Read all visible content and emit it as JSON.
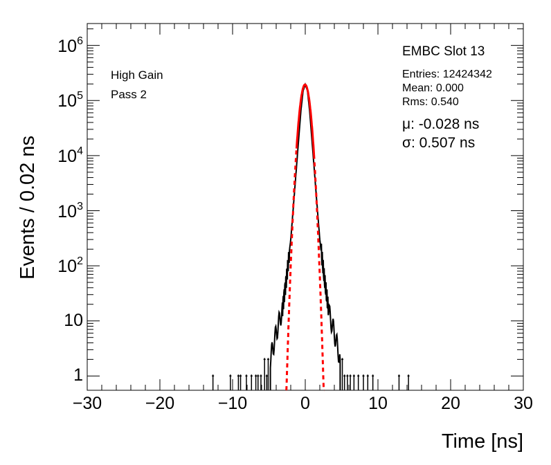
{
  "chart_data": {
    "type": "histogram",
    "title": "",
    "xlabel": "Time [ns]",
    "ylabel": "Events / 0.02 ns",
    "xlim": [
      -30,
      30
    ],
    "ylim": [
      0.55,
      2500000
    ],
    "y_scale": "log",
    "x_ticks": [
      -30,
      -20,
      -10,
      0,
      10,
      20,
      30
    ],
    "x_tick_labels": [
      "−30",
      "−20",
      "−10",
      "0",
      "10",
      "20",
      "30"
    ],
    "y_ticks": [
      1,
      10,
      100,
      1000,
      10000,
      100000,
      1000000
    ],
    "y_tick_labels": [
      {
        "base": "1",
        "exp": ""
      },
      {
        "base": "10",
        "exp": ""
      },
      {
        "base": "10",
        "exp": "2"
      },
      {
        "base": "10",
        "exp": "3"
      },
      {
        "base": "10",
        "exp": "4"
      },
      {
        "base": "10",
        "exp": "5"
      },
      {
        "base": "10",
        "exp": "6"
      }
    ],
    "legend_text": {
      "gain": "High Gain",
      "pass": "Pass 2",
      "slot": "EMBC Slot 13",
      "entries": "Entries: 12424342",
      "mean": "Mean: 0.000",
      "rms": "Rms: 0.540",
      "mu": "μ: -0.028 ns",
      "sigma": "σ: 0.507 ns"
    },
    "series": [
      {
        "kind": "histogram",
        "color": "#000000",
        "core_points": [
          [
            -4.8,
            2
          ],
          [
            -4.0,
            6
          ],
          [
            -3.2,
            15
          ],
          [
            -2.6,
            60
          ],
          [
            -2.0,
            300
          ],
          [
            -1.5,
            2000
          ],
          [
            -1.0,
            14000
          ],
          [
            -0.6,
            65000
          ],
          [
            -0.3,
            150000
          ],
          [
            0.0,
            195000
          ],
          [
            0.3,
            150000
          ],
          [
            0.6,
            65000
          ],
          [
            1.0,
            14000
          ],
          [
            1.5,
            2000
          ],
          [
            2.0,
            300
          ],
          [
            2.6,
            60
          ],
          [
            3.2,
            15
          ],
          [
            4.0,
            6
          ],
          [
            4.8,
            2
          ]
        ],
        "sparse_points": [
          [
            -12.7,
            1
          ],
          [
            -10.3,
            1
          ],
          [
            -9.2,
            1
          ],
          [
            -8.9,
            1
          ],
          [
            -8.1,
            1
          ],
          [
            -7.4,
            1
          ],
          [
            -6.8,
            1
          ],
          [
            -6.5,
            1
          ],
          [
            -6.1,
            1
          ],
          [
            -5.6,
            2
          ],
          [
            -5.3,
            1
          ],
          [
            -5.1,
            2
          ],
          [
            5.1,
            2
          ],
          [
            5.4,
            1
          ],
          [
            5.8,
            1
          ],
          [
            6.2,
            1
          ],
          [
            6.7,
            1
          ],
          [
            7.3,
            1
          ],
          [
            8.0,
            1
          ],
          [
            8.6,
            1
          ],
          [
            9.3,
            1
          ],
          [
            12.9,
            1
          ],
          [
            14.2,
            1
          ]
        ]
      },
      {
        "kind": "gaussian_fit",
        "color": "#ff0000",
        "amplitude": 195000,
        "mu": -0.028,
        "sigma": 0.507,
        "solid_range": [
          -1.2,
          1.2
        ],
        "dashed_range": [
          -2.6,
          2.6
        ]
      }
    ],
    "grid": false
  }
}
